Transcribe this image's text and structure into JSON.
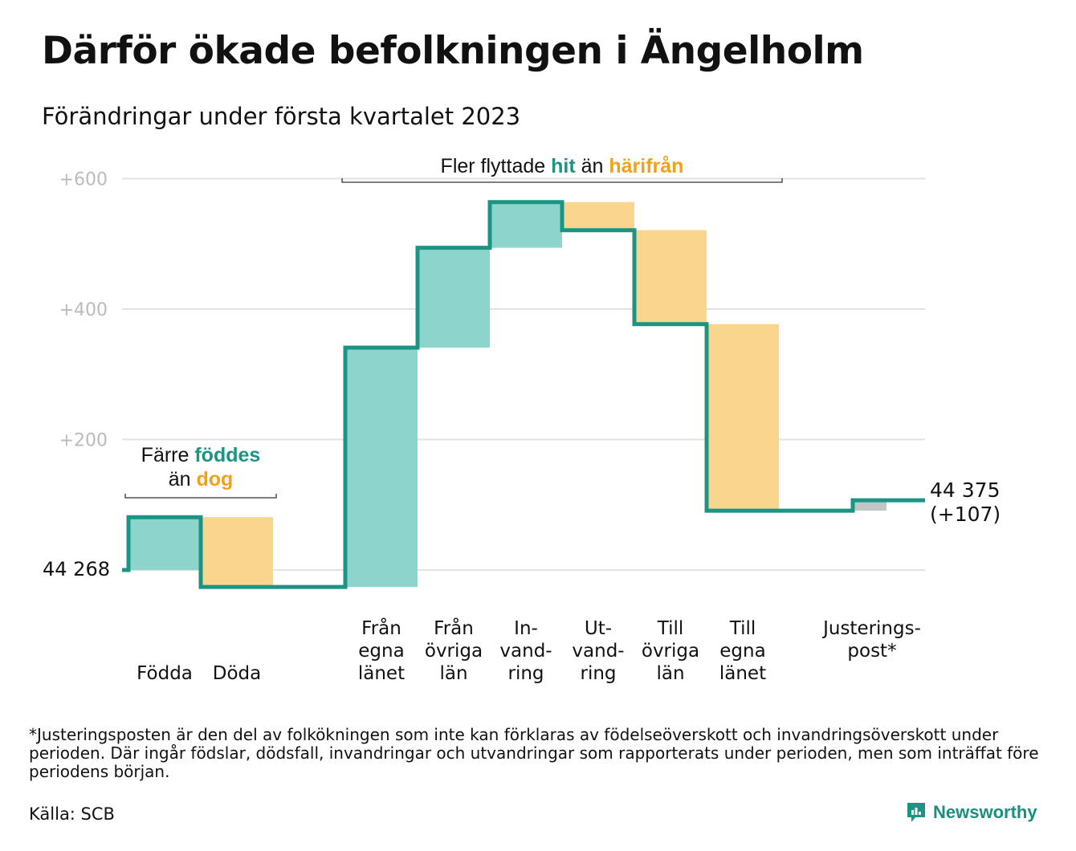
{
  "title": "Därför ökade befolkningen i Ängelholm",
  "subtitle": "Förändringar under första kvartalet 2023",
  "footnote": "*Justeringsposten är den del av folkökningen som inte kan förklaras av födelseöverskott och invandringsöverskott under perioden. Där ingår födslar, dödsfall, invandringar och utvandringar som rapporterats under perioden, men som inträffat före periodens början.",
  "source": "Källa: SCB",
  "brand": {
    "name": "Newsworthy",
    "icon": "newsworthy-logo-icon"
  },
  "colors": {
    "increase": "#8dd5cc",
    "decrease": "#fad58e",
    "adjustment": "#c3c6c6",
    "line": "#1b9484",
    "teal_text": "#1b9484",
    "orange_text": "#f3a215",
    "grid": "#e2e2e2",
    "tick": "#bbbbbb"
  },
  "chart_data": {
    "type": "waterfall",
    "start_value": 44268,
    "start_label": "44 268",
    "end_label": "44 375",
    "end_change_label": "(+107)",
    "y_ticks": [
      200,
      400,
      600
    ],
    "y_tick_labels": [
      "+200",
      "+400",
      "+600"
    ],
    "ylim": [
      -35,
      640
    ],
    "grid": true,
    "steps": [
      {
        "label": [
          "",
          "",
          "Födda"
        ],
        "change": 81,
        "kind": "increase"
      },
      {
        "label": [
          "",
          "",
          "Döda"
        ],
        "change": -107,
        "kind": "decrease"
      },
      {
        "label": [
          "Från",
          "egna",
          "länet"
        ],
        "change": 367,
        "kind": "increase"
      },
      {
        "label": [
          "Från",
          "övriga",
          "län"
        ],
        "change": 153,
        "kind": "increase"
      },
      {
        "label": [
          "In-",
          "vand-",
          "ring"
        ],
        "change": 70,
        "kind": "increase"
      },
      {
        "label": [
          "Ut-",
          "vand-",
          "ring"
        ],
        "change": -43,
        "kind": "decrease"
      },
      {
        "label": [
          "Till",
          "övriga",
          "län"
        ],
        "change": -144,
        "kind": "decrease"
      },
      {
        "label": [
          "Till",
          "egna",
          "länet"
        ],
        "change": -286,
        "kind": "decrease"
      },
      {
        "label": [
          "Justerings-",
          "post*",
          ""
        ],
        "change": 16,
        "kind": "adjustment"
      }
    ],
    "annotations": [
      {
        "parts": [
          [
            "Färre ",
            "dark"
          ],
          [
            "föddes",
            "teal"
          ]
        ],
        "parts2": [
          [
            "än ",
            "dark"
          ],
          [
            "dog",
            "orange"
          ]
        ],
        "from_step": 0,
        "to_step": 1
      },
      {
        "parts": [
          [
            "Fler flyttade ",
            "dark"
          ],
          [
            "hit",
            "teal"
          ],
          [
            " än ",
            "dark"
          ],
          [
            "härifrån",
            "orange"
          ]
        ],
        "from_step": 2,
        "to_step": 7
      }
    ]
  }
}
